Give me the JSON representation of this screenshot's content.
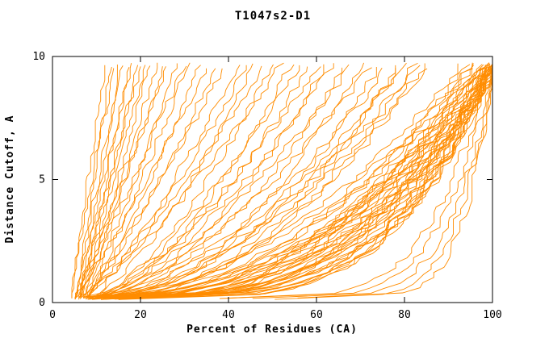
{
  "chart_data": {
    "type": "line",
    "title": "T1047s2-D1",
    "xlabel": "Percent of Residues (CA)",
    "ylabel": "Distance Cutoff, A",
    "xlim": [
      0,
      100
    ],
    "ylim": [
      0,
      10
    ],
    "x_ticks": [
      0,
      20,
      40,
      60,
      80,
      100
    ],
    "y_ticks": [
      0,
      5,
      10
    ],
    "grid": false,
    "legend": "none",
    "line_color": "#ff8c00",
    "noise_seed": 42,
    "curve_format": [
      "x_percent_at_bottom",
      "x_percent_at_top",
      "shape_exponent"
    ],
    "curves": [
      [
        4,
        12,
        1.0
      ],
      [
        5,
        13,
        0.95
      ],
      [
        4,
        14,
        1.1
      ],
      [
        6,
        15,
        0.9
      ],
      [
        5,
        16,
        1.05
      ],
      [
        6,
        17,
        0.85
      ],
      [
        5,
        18,
        1.0
      ],
      [
        7,
        19,
        0.92
      ],
      [
        6,
        20,
        1.1
      ],
      [
        5,
        21,
        0.88
      ],
      [
        7,
        22,
        1.0
      ],
      [
        6,
        24,
        0.95
      ],
      [
        8,
        25,
        1.05
      ],
      [
        5,
        26,
        0.9
      ],
      [
        7,
        28,
        0.85
      ],
      [
        6,
        30,
        1.0
      ],
      [
        8,
        31,
        0.92
      ],
      [
        7,
        33,
        0.8
      ],
      [
        6,
        35,
        0.95
      ],
      [
        8,
        37,
        0.88
      ],
      [
        7,
        39,
        0.9
      ],
      [
        9,
        42,
        0.85
      ],
      [
        6,
        44,
        0.75
      ],
      [
        8,
        46,
        0.7
      ],
      [
        7,
        48,
        0.8
      ],
      [
        9,
        50,
        0.65
      ],
      [
        6,
        52,
        0.78
      ],
      [
        8,
        54,
        0.6
      ],
      [
        10,
        56,
        0.72
      ],
      [
        7,
        58,
        0.58
      ],
      [
        9,
        60,
        0.7
      ],
      [
        8,
        62,
        0.55
      ],
      [
        10,
        64,
        0.68
      ],
      [
        7,
        66,
        0.52
      ],
      [
        9,
        68,
        0.66
      ],
      [
        11,
        70,
        0.5
      ],
      [
        8,
        72,
        0.62
      ],
      [
        10,
        74,
        0.48
      ],
      [
        9,
        76,
        0.6
      ],
      [
        11,
        78,
        0.46
      ],
      [
        8,
        80,
        0.58
      ],
      [
        10,
        82,
        0.45
      ],
      [
        9,
        84,
        0.55
      ],
      [
        12,
        85,
        0.5
      ],
      [
        11,
        83,
        0.6
      ],
      [
        10,
        79,
        0.52
      ],
      [
        7,
        93,
        0.5
      ],
      [
        9,
        94,
        0.45
      ],
      [
        8,
        95,
        0.52
      ],
      [
        10,
        95,
        0.4
      ],
      [
        9,
        96,
        0.48
      ],
      [
        11,
        96,
        0.38
      ],
      [
        8,
        97,
        0.5
      ],
      [
        10,
        97,
        0.36
      ],
      [
        12,
        97,
        0.44
      ],
      [
        9,
        98,
        0.34
      ],
      [
        11,
        98,
        0.46
      ],
      [
        13,
        98,
        0.33
      ],
      [
        10,
        98,
        0.42
      ],
      [
        12,
        99,
        0.32
      ],
      [
        9,
        99,
        0.45
      ],
      [
        11,
        99,
        0.31
      ],
      [
        13,
        99,
        0.4
      ],
      [
        10,
        99,
        0.3
      ],
      [
        12,
        99,
        0.43
      ],
      [
        14,
        100,
        0.29
      ],
      [
        10,
        100,
        0.41
      ],
      [
        12,
        100,
        0.28
      ],
      [
        9,
        100,
        0.44
      ],
      [
        11,
        100,
        0.27
      ],
      [
        13,
        100,
        0.39
      ],
      [
        15,
        100,
        0.26
      ],
      [
        10,
        100,
        0.42
      ],
      [
        12,
        100,
        0.25
      ],
      [
        14,
        100,
        0.38
      ],
      [
        11,
        100,
        0.3
      ],
      [
        13,
        100,
        0.36
      ],
      [
        16,
        100,
        0.28
      ],
      [
        12,
        100,
        0.34
      ],
      [
        14,
        100,
        0.26
      ],
      [
        11,
        100,
        0.37
      ],
      [
        13,
        100,
        0.24
      ],
      [
        15,
        100,
        0.35
      ],
      [
        12,
        100,
        0.27
      ],
      [
        16,
        100,
        0.33
      ],
      [
        14,
        100,
        0.25
      ],
      [
        38,
        99,
        0.22
      ],
      [
        40,
        100,
        0.2
      ],
      [
        45,
        100,
        0.18
      ],
      [
        50,
        100,
        0.17
      ],
      [
        55,
        100,
        0.15
      ]
    ]
  }
}
